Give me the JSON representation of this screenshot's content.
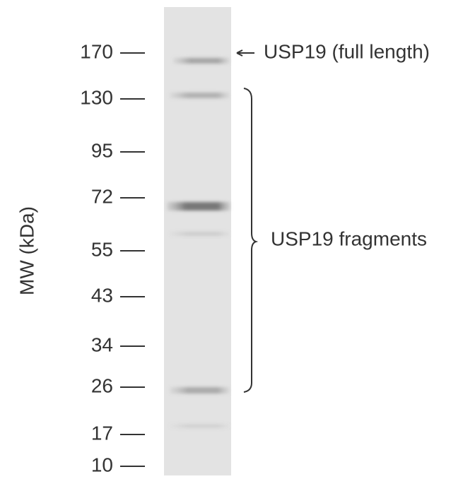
{
  "y_axis_label": "MW (kDa)",
  "markers": [
    "170",
    "130",
    "95",
    "72",
    "55",
    "43",
    "34",
    "26",
    "17",
    "10"
  ],
  "annotations": {
    "full_length": "USP19 (full length)",
    "fragments": "USP19 fragments"
  }
}
